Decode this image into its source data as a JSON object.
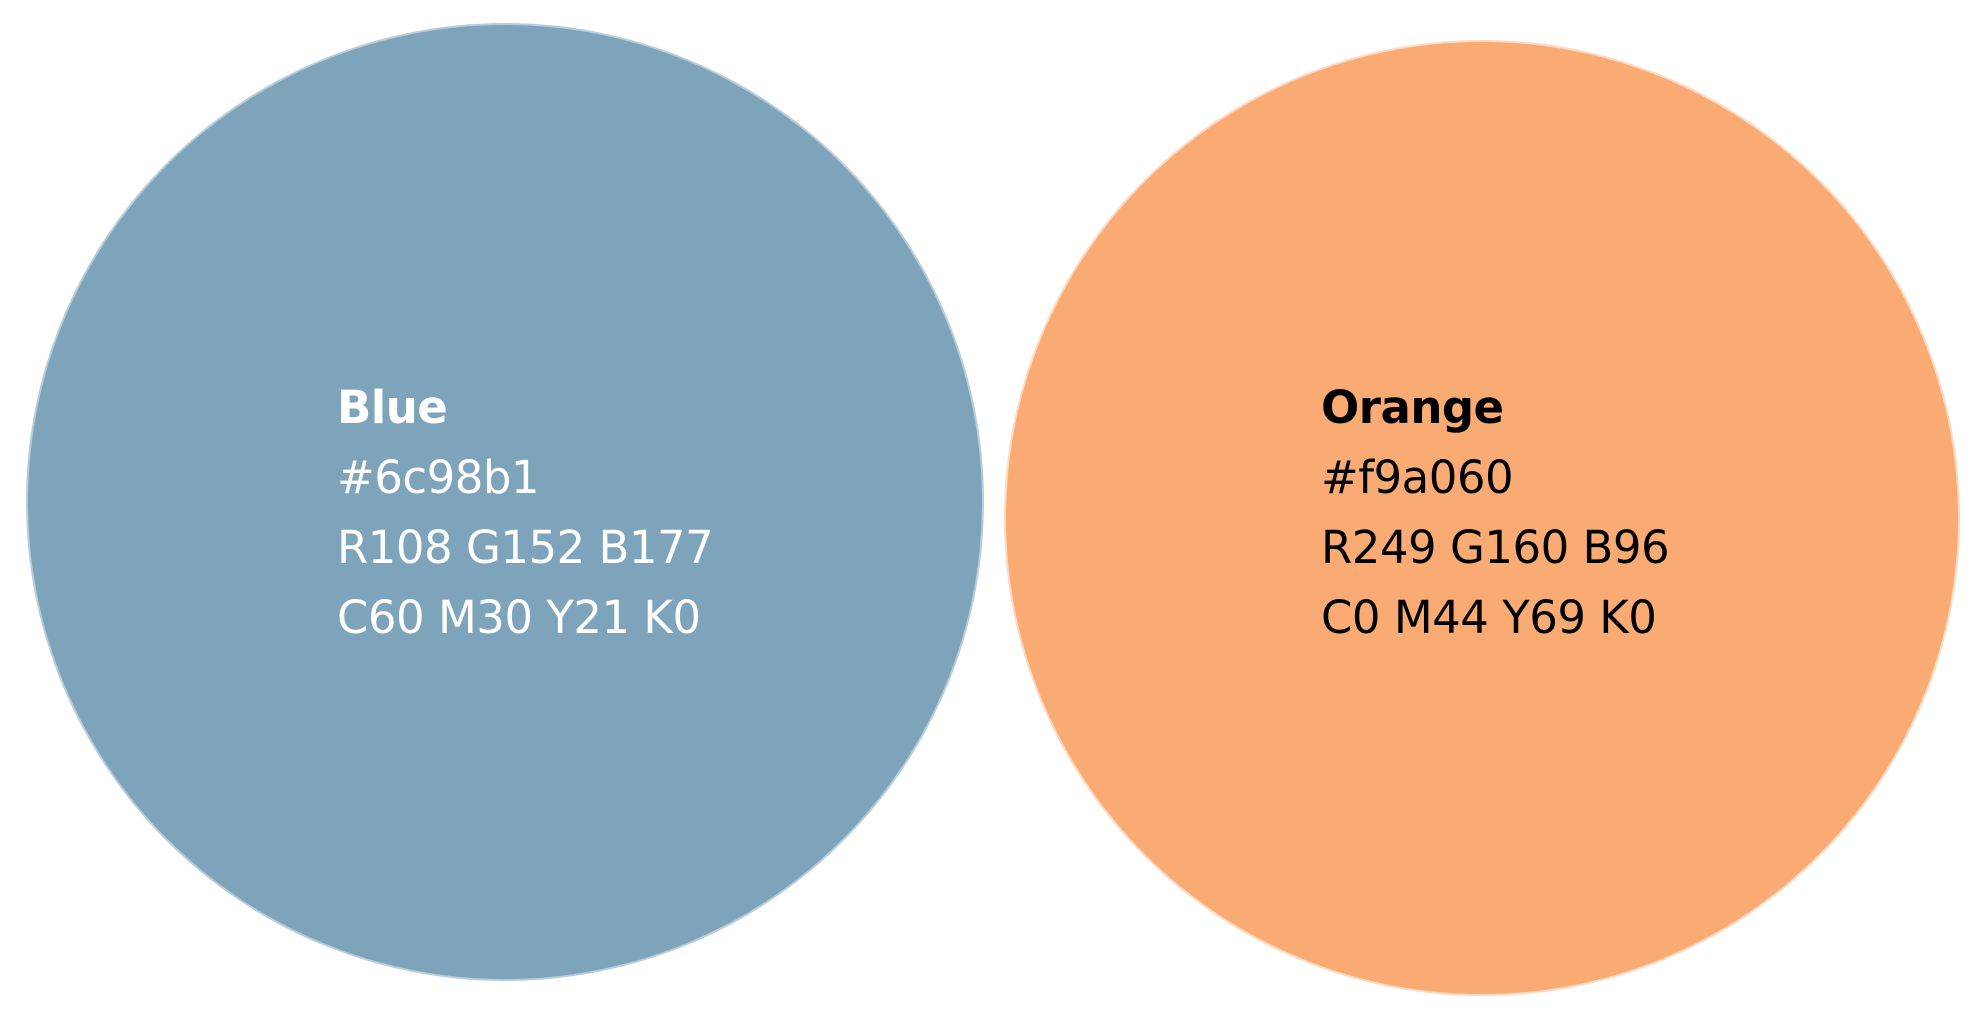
{
  "swatches": [
    {
      "name": "Blue",
      "hex": "#6c98b1",
      "rgb": "R108 G152 B177",
      "cmyk": "C60 M30 Y21 K0",
      "fill_color": "#6c98b1",
      "text_color": "#ffffff"
    },
    {
      "name": "Orange",
      "hex": "#f9a060",
      "rgb": "R249 G160 B96",
      "cmyk": "C0 M44 Y69 K0",
      "fill_color": "#f9a060",
      "text_color": "#000000"
    }
  ]
}
